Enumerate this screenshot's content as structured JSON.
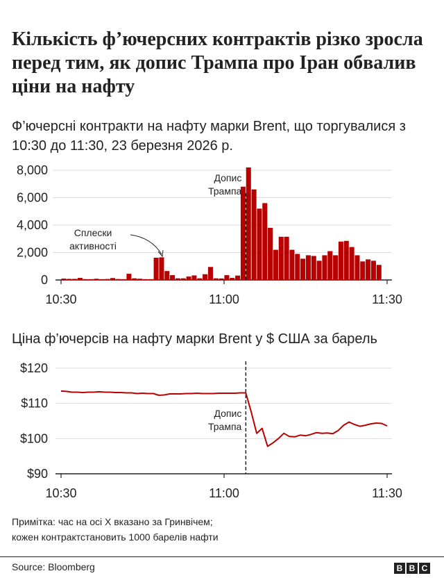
{
  "title": "Кількість ф’ючерсних контрактів різко зросла перед тим, як допис Трампа про Іран обвалив ціни на нафту",
  "note_lines": [
    "Примітка: час на осі X вказано за Гринвічем;",
    "кожен контрактстановить 1000 барелів нафти"
  ],
  "source": "Source: Bloomberg",
  "logo_letters": [
    "B",
    "B",
    "C"
  ],
  "colors": {
    "bars": "#b80000",
    "line": "#b80000",
    "text": "#222222",
    "grid": "#dddddd"
  },
  "chart_data": [
    {
      "type": "bar",
      "title": "Ф’ючерсні контракти на нафту марки Brent, що торгувалися з 10:30 до 11:30, 23 березня 2026 р.",
      "x_ticks": [
        "10:30",
        "11:00",
        "11:30"
      ],
      "y_ticks": [
        "0",
        "2,000",
        "4,000",
        "6,000",
        "8,000"
      ],
      "ylim": [
        0,
        8000
      ],
      "grid": true,
      "values": [
        100,
        80,
        80,
        150,
        60,
        60,
        90,
        60,
        70,
        140,
        70,
        60,
        450,
        120,
        90,
        60,
        60,
        1620,
        1650,
        650,
        350,
        120,
        120,
        250,
        330,
        120,
        420,
        950,
        120,
        110,
        350,
        150,
        320,
        6800,
        8200,
        6600,
        5200,
        5600,
        3800,
        2200,
        3150,
        3150,
        2200,
        1900,
        1550,
        1800,
        1750,
        1400,
        1800,
        2100,
        1800,
        2800,
        2850,
        2400,
        1800,
        1350,
        1500,
        1400,
        1100
      ],
      "annotations": [
        {
          "label": "Сплески активності",
          "points_to": "10:51"
        },
        {
          "label": "Допис Трампа",
          "time": "11:04"
        }
      ]
    },
    {
      "type": "line",
      "title": "Ціна ф’ючерсів на нафту марки Brent у $ США за барель",
      "x_ticks": [
        "10:30",
        "11:00",
        "11:30"
      ],
      "y_ticks": [
        "$90",
        "$100",
        "$110",
        "$120"
      ],
      "ylim": [
        90,
        120
      ],
      "grid": true,
      "x_minutes": [
        0,
        1,
        2,
        3,
        4,
        5,
        6,
        7,
        8,
        9,
        10,
        11,
        12,
        13,
        14,
        15,
        16,
        17,
        18,
        19,
        20,
        21,
        22,
        23,
        24,
        25,
        26,
        27,
        28,
        29,
        30,
        31,
        32,
        33,
        34,
        35,
        36,
        37,
        38,
        39,
        40,
        41,
        42,
        43,
        44,
        45,
        46,
        47,
        48,
        49,
        50,
        51,
        52,
        53,
        54,
        55,
        56,
        57,
        58,
        59,
        60
      ],
      "values": [
        113.5,
        113.4,
        113.2,
        113.2,
        113.1,
        113.2,
        113.2,
        113.3,
        113.2,
        113.2,
        113.1,
        113.1,
        113.0,
        113.0,
        112.8,
        112.9,
        112.8,
        112.8,
        112.3,
        112.4,
        112.7,
        112.7,
        112.7,
        112.8,
        112.8,
        112.9,
        112.8,
        112.8,
        112.8,
        112.9,
        112.9,
        112.9,
        112.9,
        113.0,
        113.0,
        107.5,
        101.5,
        102.9,
        97.8,
        98.8,
        100.0,
        101.5,
        100.6,
        100.5,
        101.0,
        100.8,
        101.2,
        101.7,
        101.5,
        101.6,
        101.4,
        102.3,
        103.8,
        104.7,
        104.0,
        103.5,
        103.8,
        104.2,
        104.4,
        104.3,
        103.6
      ],
      "annotations": [
        {
          "label": "Допис Трампа",
          "time": "11:04"
        }
      ]
    }
  ],
  "labels": {
    "bursts_line1": "Сплески",
    "bursts_line2": "активності",
    "post_line1": "Допис",
    "post_line2": "Трампа"
  }
}
